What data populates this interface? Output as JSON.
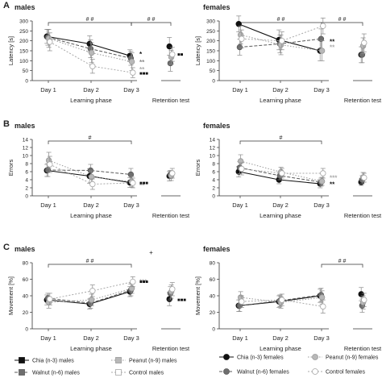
{
  "styles": {
    "chia": {
      "color": "#111111",
      "fill": "#111111",
      "marker": "circle",
      "dash": "",
      "lw": 1.1
    },
    "walnut": {
      "color": "#5a5a5a",
      "fill": "#6e6e6e",
      "marker": "circle",
      "dash": "4,2",
      "lw": 1.0
    },
    "peanut": {
      "color": "#9a9a9a",
      "fill": "#b8b8b8",
      "marker": "circle",
      "dash": "1.5,2",
      "lw": 1.0
    },
    "control": {
      "color": "#a8a8a8",
      "fill": "#ffffff",
      "marker": "circle",
      "dash": "2,2",
      "lw": 1.0
    },
    "colors": {
      "axis": "#333333",
      "text": "#222222",
      "errorbar": "#888888"
    }
  },
  "legend": {
    "items": [
      {
        "key": "chia",
        "label": "Chia (n-3) males"
      },
      {
        "key": "peanut",
        "label": "Peanut (n-9) males"
      },
      {
        "key": "walnut",
        "label": "Walnut (n-6) males"
      },
      {
        "key": "control",
        "label": "Control males"
      },
      {
        "key": "chia",
        "label": "Chia (n-3) females"
      },
      {
        "key": "peanut",
        "label": "Peanut (n-9) females"
      },
      {
        "key": "walnut",
        "label": "Walnut (n-6) females"
      },
      {
        "key": "control",
        "label": "Control females"
      }
    ]
  },
  "chart_data": [
    {
      "type": "line",
      "panel_letter": "A",
      "title": "males",
      "ylabel": "Latency [s]",
      "xlabel": "Learning phase",
      "categories": [
        "Day 1",
        "Day 2",
        "Day 3"
      ],
      "extra_category": "Retention test",
      "ylim": [
        0,
        300
      ],
      "yticks": [
        0,
        50,
        100,
        150,
        200,
        250,
        300
      ],
      "series": [
        {
          "key": "chia",
          "values": [
            222,
            185,
            125
          ],
          "err": [
            35,
            40,
            30
          ],
          "retention": 172,
          "retention_err": 45
        },
        {
          "key": "walnut",
          "values": [
            218,
            160,
            112
          ],
          "err": [
            40,
            45,
            35
          ],
          "retention": 87,
          "retention_err": 40
        },
        {
          "key": "peanut",
          "values": [
            212,
            140,
            95
          ],
          "err": [
            45,
            50,
            45
          ],
          "retention": 118,
          "retention_err": 35
        },
        {
          "key": "control",
          "values": [
            195,
            72,
            40
          ],
          "err": [
            45,
            35,
            25
          ],
          "retention": 132,
          "retention_err": 35
        }
      ],
      "brackets": [
        {
          "from": "Day 1",
          "to": "Day 3",
          "label": "# #"
        },
        {
          "from": "Day 3",
          "to": "Retention test",
          "label": "# #"
        }
      ],
      "annotations": [
        {
          "text": "*",
          "dy": -10,
          "color": "#111111"
        },
        {
          "text": "**",
          "dy": 0,
          "color": "#8a8a8a"
        },
        {
          "text": "**",
          "dy": 9,
          "color": "#aaaaaa"
        }
      ],
      "retention_marker_label": "■■",
      "retention_d3_marker": {
        "text": "■■■",
        "value": 40
      }
    },
    {
      "type": "line",
      "panel_letter": "",
      "title": "females",
      "ylabel": "Latency [s]",
      "xlabel": "Learning phase",
      "categories": [
        "Day 1",
        "Day 2",
        "Day 3"
      ],
      "extra_category": "Retention test",
      "ylim": [
        0,
        300
      ],
      "yticks": [
        0,
        50,
        100,
        150,
        200,
        250,
        300
      ],
      "series": [
        {
          "key": "chia",
          "values": [
            285,
            205,
            150
          ],
          "err": [
            40,
            50,
            50
          ],
          "retention": 130,
          "retention_err": 40
        },
        {
          "key": "walnut",
          "values": [
            168,
            185,
            210
          ],
          "err": [
            40,
            45,
            50
          ],
          "retention": 130,
          "retention_err": 40
        },
        {
          "key": "peanut",
          "values": [
            230,
            180,
            150
          ],
          "err": [
            45,
            50,
            50
          ],
          "retention": 175,
          "retention_err": 40
        },
        {
          "key": "control",
          "values": [
            210,
            200,
            275
          ],
          "err": [
            45,
            45,
            40
          ],
          "retention": 190,
          "retention_err": 45
        }
      ],
      "brackets": [
        {
          "from": "Day 1",
          "to": "Day 3",
          "label": "# #"
        },
        {
          "from": "Day 3",
          "to": "Retention test",
          "label": "# #"
        }
      ],
      "annotations": [
        {
          "text": "**",
          "dy": 0,
          "color": "#111111"
        },
        {
          "text": "**",
          "dy": 7,
          "color": "#aaaaaa"
        }
      ]
    },
    {
      "type": "line",
      "panel_letter": "B",
      "title": "males",
      "ylabel": "Errors",
      "xlabel": "Learning phase",
      "categories": [
        "Day 1",
        "Day 2",
        "Day 3"
      ],
      "extra_category": "Retention test",
      "ylim": [
        0,
        14
      ],
      "yticks": [
        0,
        2,
        4,
        6,
        8,
        10,
        12,
        14
      ],
      "series": [
        {
          "key": "chia",
          "values": [
            6.3,
            4.9,
            3.3
          ],
          "err": [
            1.5,
            1.8,
            1.2
          ],
          "retention": 4.9,
          "retention_err": 1.2
        },
        {
          "key": "walnut",
          "values": [
            6.4,
            6.3,
            5.3
          ],
          "err": [
            1.6,
            1.5,
            1.5
          ],
          "retention": 5.3,
          "retention_err": 1.0
        },
        {
          "key": "peanut",
          "values": [
            8.8,
            4.7,
            3.5
          ],
          "err": [
            2.0,
            1.5,
            1.3
          ],
          "retention": 5.0,
          "retention_err": 1.2
        },
        {
          "key": "control",
          "values": [
            7.8,
            2.9,
            3.2
          ],
          "err": [
            2.0,
            1.3,
            1.2
          ],
          "retention": 5.6,
          "retention_err": 1.2
        }
      ],
      "brackets": [
        {
          "from": "Day 1",
          "to": "Day 3",
          "label": "#"
        }
      ],
      "annotations": [
        {
          "text": "**",
          "dy": 6,
          "color": "#aaaaaa"
        }
      ],
      "retention_d3_marker": {
        "text": "■■■",
        "value": 3.4
      }
    },
    {
      "type": "line",
      "panel_letter": "",
      "title": "females",
      "ylabel": "Errors",
      "xlabel": "Learning phase",
      "categories": [
        "Day 1",
        "Day 2",
        "Day 3"
      ],
      "extra_category": "Retention test",
      "ylim": [
        0,
        14
      ],
      "yticks": [
        0,
        2,
        4,
        6,
        8,
        10,
        12,
        14
      ],
      "series": [
        {
          "key": "chia",
          "values": [
            6.0,
            4.0,
            3.0
          ],
          "err": [
            1.3,
            1.0,
            1.0
          ],
          "retention": 3.4,
          "retention_err": 0.8
        },
        {
          "key": "walnut",
          "values": [
            7.0,
            5.0,
            3.4
          ],
          "err": [
            1.5,
            1.0,
            1.0
          ],
          "retention": 4.0,
          "retention_err": 1.0
        },
        {
          "key": "peanut",
          "values": [
            8.6,
            5.9,
            3.6
          ],
          "err": [
            1.6,
            1.2,
            1.0
          ],
          "retention": 4.6,
          "retention_err": 1.2
        },
        {
          "key": "control",
          "values": [
            6.7,
            5.6,
            5.6
          ],
          "err": [
            1.5,
            1.2,
            1.2
          ],
          "retention": 4.5,
          "retention_err": 1.1
        }
      ],
      "brackets": [
        {
          "from": "Day 1",
          "to": "Day 3",
          "label": "#"
        }
      ],
      "annotations": [
        {
          "text": "***",
          "dy": -3,
          "color": "#aaaaaa"
        },
        {
          "text": "**",
          "dy": 5,
          "color": "#111111"
        }
      ]
    },
    {
      "type": "line",
      "panel_letter": "C",
      "title": "males",
      "ylabel": "Movement [%]",
      "xlabel": "Learning phase",
      "categories": [
        "Day 1",
        "Day 2",
        "Day 3"
      ],
      "extra_category": "Retention test",
      "ylim": [
        0,
        80
      ],
      "yticks": [
        0,
        20,
        40,
        60,
        80
      ],
      "series": [
        {
          "key": "chia",
          "values": [
            35,
            30,
            45
          ],
          "err": [
            6,
            6,
            6
          ],
          "retention": 36,
          "retention_err": 8
        },
        {
          "key": "walnut",
          "values": [
            37,
            31,
            47
          ],
          "err": [
            6,
            6,
            7
          ],
          "retention": 43,
          "retention_err": 8
        },
        {
          "key": "peanut",
          "values": [
            32,
            35,
            49
          ],
          "err": [
            7,
            7,
            6
          ],
          "retention": 45,
          "retention_err": 8
        },
        {
          "key": "control",
          "values": [
            36,
            46,
            57
          ],
          "err": [
            7,
            7,
            6
          ],
          "retention": 48,
          "retention_err": 8
        }
      ],
      "brackets": [
        {
          "from": "Day 1",
          "to": "Day 3",
          "label": "# #"
        }
      ],
      "top_symbol": "+",
      "annotations": [
        {
          "text": "***",
          "dy": -8,
          "color": "#9a9a9a"
        }
      ],
      "retention_d3_marker": {
        "text": "■■■",
        "value": 58
      },
      "retention_marker_label": "■■■"
    },
    {
      "type": "line",
      "panel_letter": "",
      "title": "females",
      "ylabel": "Movement [%]",
      "xlabel": "Learning phase",
      "categories": [
        "Day 1",
        "Day 2",
        "Day 3"
      ],
      "extra_category": "Retention test",
      "ylim": [
        0,
        80
      ],
      "yticks": [
        0,
        20,
        40,
        60,
        80
      ],
      "series": [
        {
          "key": "chia",
          "values": [
            28,
            33,
            40
          ],
          "err": [
            7,
            7,
            8
          ],
          "retention": 42,
          "retention_err": 8
        },
        {
          "key": "walnut",
          "values": [
            28,
            34,
            41
          ],
          "err": [
            7,
            7,
            8
          ],
          "retention": 28,
          "retention_err": 8
        },
        {
          "key": "peanut",
          "values": [
            38,
            32,
            38
          ],
          "err": [
            7,
            7,
            8
          ],
          "retention": 32,
          "retention_err": 8
        },
        {
          "key": "control",
          "values": [
            33,
            35,
            27
          ],
          "err": [
            7,
            7,
            8
          ],
          "retention": 35,
          "retention_err": 8
        }
      ],
      "brackets": [
        {
          "from": "Day 3",
          "to": "Retention test",
          "label": "# #"
        }
      ],
      "annotations": []
    }
  ]
}
